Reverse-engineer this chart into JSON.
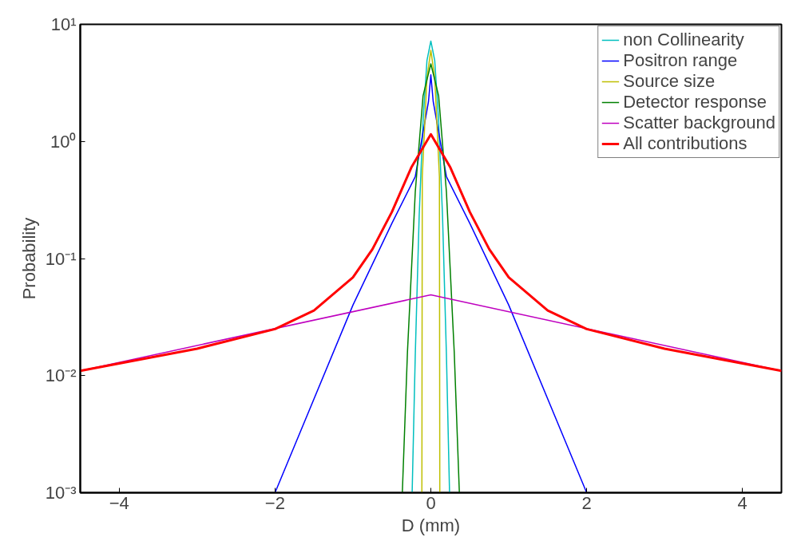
{
  "chart_data": {
    "type": "line",
    "xlabel": "D (mm)",
    "ylabel": "Probability",
    "log": "y",
    "grid": false,
    "legend": "top right",
    "xlim": [
      -4.5,
      4.5
    ],
    "xticks": [
      -4,
      -2,
      0,
      2,
      4
    ],
    "ylim": [
      0.001,
      10
    ],
    "yticks": [
      {
        "value": 0.001,
        "label": "10⁻³"
      },
      {
        "value": 0.01,
        "label": "10⁻²"
      },
      {
        "value": 0.1,
        "label": "10⁻¹"
      },
      {
        "value": 1,
        "label": "10⁰"
      },
      {
        "value": 10,
        "label": "10¹"
      }
    ],
    "series": [
      {
        "name": "non Collinearity",
        "color": "#00bfbf",
        "x": [
          -0.24,
          -0.2,
          -0.15,
          -0.1,
          -0.05,
          0,
          0.05,
          0.1,
          0.15,
          0.2,
          0.24
        ],
        "values": [
          0.001,
          0.015,
          0.23,
          1.5,
          4.9,
          7.2,
          4.9,
          1.5,
          0.23,
          0.015,
          0.001
        ]
      },
      {
        "name": "Positron range",
        "color": "#0000ff",
        "x": [
          -2,
          -1,
          -0.5,
          -0.2,
          -0.1,
          -0.03,
          0,
          0.03,
          0.1,
          0.2,
          0.5,
          1,
          2
        ],
        "values": [
          0.001,
          0.04,
          0.2,
          0.5,
          1.2,
          2.2,
          3.7,
          2.2,
          1.2,
          0.5,
          0.2,
          0.04,
          0.001
        ]
      },
      {
        "name": "Source size",
        "color": "#bfbf00",
        "x": [
          -0.115,
          -0.11,
          -0.05,
          0,
          0.05,
          0.11,
          0.115
        ],
        "values": [
          0.001,
          0.5,
          3.5,
          6,
          3.5,
          0.5,
          0.001
        ]
      },
      {
        "name": "Detector response",
        "color": "#008000",
        "x": [
          -0.366,
          -0.3,
          -0.2,
          -0.1,
          0,
          0.1,
          0.2,
          0.3,
          0.366
        ],
        "values": [
          0.001,
          0.016,
          0.37,
          2.45,
          4.6,
          2.45,
          0.37,
          0.016,
          0.001
        ]
      },
      {
        "name": "Scatter background",
        "color": "#bf00bf",
        "x": [
          -4.5,
          0,
          4.5
        ],
        "values": [
          0.011,
          0.049,
          0.011
        ]
      },
      {
        "name": "All contributions",
        "color": "#ff0000",
        "x": [
          -4.5,
          -3,
          -2,
          -1.5,
          -1,
          -0.75,
          -0.5,
          -0.25,
          0,
          0.25,
          0.5,
          0.75,
          1,
          1.5,
          2,
          3,
          4.5
        ],
        "values": [
          0.011,
          0.017,
          0.025,
          0.036,
          0.069,
          0.12,
          0.25,
          0.6,
          1.15,
          0.6,
          0.25,
          0.12,
          0.069,
          0.036,
          0.025,
          0.017,
          0.011
        ]
      }
    ]
  }
}
